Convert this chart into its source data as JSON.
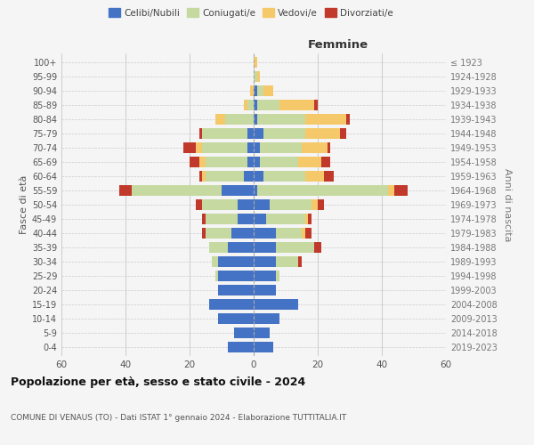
{
  "age_groups": [
    "0-4",
    "5-9",
    "10-14",
    "15-19",
    "20-24",
    "25-29",
    "30-34",
    "35-39",
    "40-44",
    "45-49",
    "50-54",
    "55-59",
    "60-64",
    "65-69",
    "70-74",
    "75-79",
    "80-84",
    "85-89",
    "90-94",
    "95-99",
    "100+"
  ],
  "birth_years": [
    "2019-2023",
    "2014-2018",
    "2009-2013",
    "2004-2008",
    "1999-2003",
    "1994-1998",
    "1989-1993",
    "1984-1988",
    "1979-1983",
    "1974-1978",
    "1969-1973",
    "1964-1968",
    "1959-1963",
    "1954-1958",
    "1949-1953",
    "1944-1948",
    "1939-1943",
    "1934-1938",
    "1929-1933",
    "1924-1928",
    "≤ 1923"
  ],
  "colors": {
    "celibi": "#4472c4",
    "coniugati": "#c5d9a0",
    "vedovi": "#f5c96a",
    "divorziati": "#c0392b"
  },
  "males": {
    "celibi": [
      8,
      6,
      11,
      14,
      11,
      11,
      11,
      8,
      7,
      5,
      5,
      10,
      3,
      2,
      2,
      2,
      0,
      0,
      0,
      0,
      0
    ],
    "coniugati": [
      0,
      0,
      0,
      0,
      0,
      1,
      2,
      6,
      8,
      10,
      11,
      28,
      12,
      13,
      14,
      14,
      9,
      2,
      0,
      0,
      0
    ],
    "vedovi": [
      0,
      0,
      0,
      0,
      0,
      0,
      0,
      0,
      0,
      0,
      0,
      0,
      1,
      2,
      2,
      0,
      3,
      1,
      1,
      0,
      0
    ],
    "divorziati": [
      0,
      0,
      0,
      0,
      0,
      0,
      0,
      0,
      1,
      1,
      2,
      4,
      1,
      3,
      4,
      1,
      0,
      0,
      0,
      0,
      0
    ]
  },
  "females": {
    "celibi": [
      6,
      5,
      8,
      14,
      7,
      7,
      7,
      7,
      7,
      4,
      5,
      1,
      3,
      2,
      2,
      3,
      1,
      1,
      1,
      0,
      0
    ],
    "coniugati": [
      0,
      0,
      0,
      0,
      0,
      1,
      7,
      12,
      8,
      12,
      13,
      41,
      13,
      12,
      13,
      13,
      15,
      7,
      2,
      1,
      0
    ],
    "vedovi": [
      0,
      0,
      0,
      0,
      0,
      0,
      0,
      0,
      1,
      1,
      2,
      2,
      6,
      7,
      8,
      11,
      13,
      11,
      3,
      1,
      1
    ],
    "divorziati": [
      0,
      0,
      0,
      0,
      0,
      0,
      1,
      2,
      2,
      1,
      2,
      4,
      3,
      3,
      1,
      2,
      1,
      1,
      0,
      0,
      0
    ]
  },
  "xlim": 60,
  "title": "Popolazione per età, sesso e stato civile - 2024",
  "subtitle": "COMUNE DI VENAUS (TO) - Dati ISTAT 1° gennaio 2024 - Elaborazione TUTTITALIA.IT",
  "ylabel_left": "Fasce di età",
  "ylabel_right": "Anni di nascita",
  "legend_labels": [
    "Celibi/Nubili",
    "Coniugati/e",
    "Vedovi/e",
    "Divorziati/e"
  ],
  "bg_color": "#f5f5f5",
  "grid_color": "#cccccc",
  "bar_height": 0.75
}
